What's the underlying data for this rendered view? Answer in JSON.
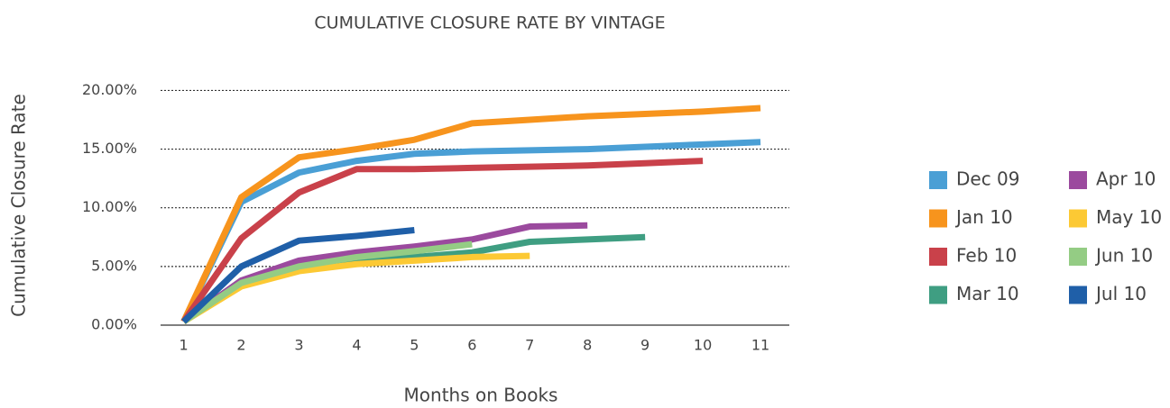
{
  "chart_data": {
    "type": "line",
    "title": "CUMULATIVE CLOSURE RATE BY VINTAGE",
    "x_label": "Months on Books",
    "y_label": "Cumulative Closure Rate",
    "x": [
      1,
      2,
      3,
      4,
      5,
      6,
      7,
      8,
      9,
      10,
      11
    ],
    "xlim": [
      0.6,
      11.5
    ],
    "xticks": [
      1,
      2,
      3,
      4,
      5,
      6,
      7,
      8,
      9,
      10,
      11
    ],
    "ylim": [
      0,
      20.8
    ],
    "yticks": [
      {
        "value": 0,
        "label": "0.00%"
      },
      {
        "value": 5,
        "label": "5.00%"
      },
      {
        "value": 10,
        "label": "10.00%"
      },
      {
        "value": 15,
        "label": "15.00%"
      },
      {
        "value": 20,
        "label": "20.00%"
      }
    ],
    "grid": true,
    "legend": "right",
    "series": [
      {
        "name": "Dec 09",
        "color": "#4a9fd5",
        "values": [
          0.3,
          10.5,
          13.0,
          14.0,
          14.6,
          14.8,
          14.9,
          15.0,
          15.2,
          15.4,
          15.6
        ]
      },
      {
        "name": "Jan 10",
        "color": "#f7941d",
        "values": [
          0.3,
          10.9,
          14.3,
          15.0,
          15.8,
          17.2,
          17.5,
          17.8,
          18.0,
          18.2,
          18.5
        ]
      },
      {
        "name": "Feb 10",
        "color": "#c9414a",
        "values": [
          0.3,
          7.4,
          11.3,
          13.3,
          13.3,
          13.4,
          13.5,
          13.6,
          13.8,
          14.0,
          null
        ]
      },
      {
        "name": "Mar 10",
        "color": "#3f9e82",
        "values": [
          0.3,
          3.8,
          5.0,
          5.5,
          5.8,
          6.2,
          7.1,
          7.3,
          7.5,
          null,
          null
        ]
      },
      {
        "name": "Apr 10",
        "color": "#9b4a9e",
        "values": [
          0.3,
          3.8,
          5.5,
          6.2,
          6.7,
          7.3,
          8.4,
          8.5,
          null,
          null,
          null
        ]
      },
      {
        "name": "May 10",
        "color": "#fcc934",
        "values": [
          0.3,
          3.3,
          4.6,
          5.2,
          5.5,
          5.8,
          5.9,
          null,
          null,
          null,
          null
        ]
      },
      {
        "name": "Jun 10",
        "color": "#94cc84",
        "values": [
          0.3,
          3.6,
          5.0,
          5.8,
          6.3,
          6.9,
          null,
          null,
          null,
          null,
          null
        ]
      },
      {
        "name": "Jul 10",
        "color": "#1f5fa8",
        "values": [
          0.3,
          5.0,
          7.2,
          7.6,
          8.1,
          null,
          null,
          null,
          null,
          null,
          null
        ]
      }
    ]
  }
}
